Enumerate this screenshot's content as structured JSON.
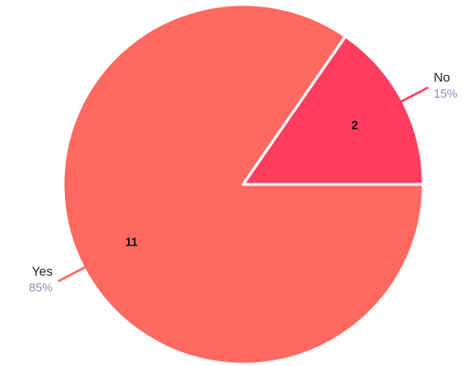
{
  "chart_data": {
    "type": "pie",
    "categories": [
      "Yes",
      "No"
    ],
    "values": [
      11,
      2
    ],
    "percentages": [
      85,
      15
    ],
    "percentage_labels": [
      "85%",
      "15%"
    ],
    "colors": [
      "#fe6961",
      "#ff3d5e"
    ],
    "start_angle": 0,
    "direction": "clockwise"
  }
}
